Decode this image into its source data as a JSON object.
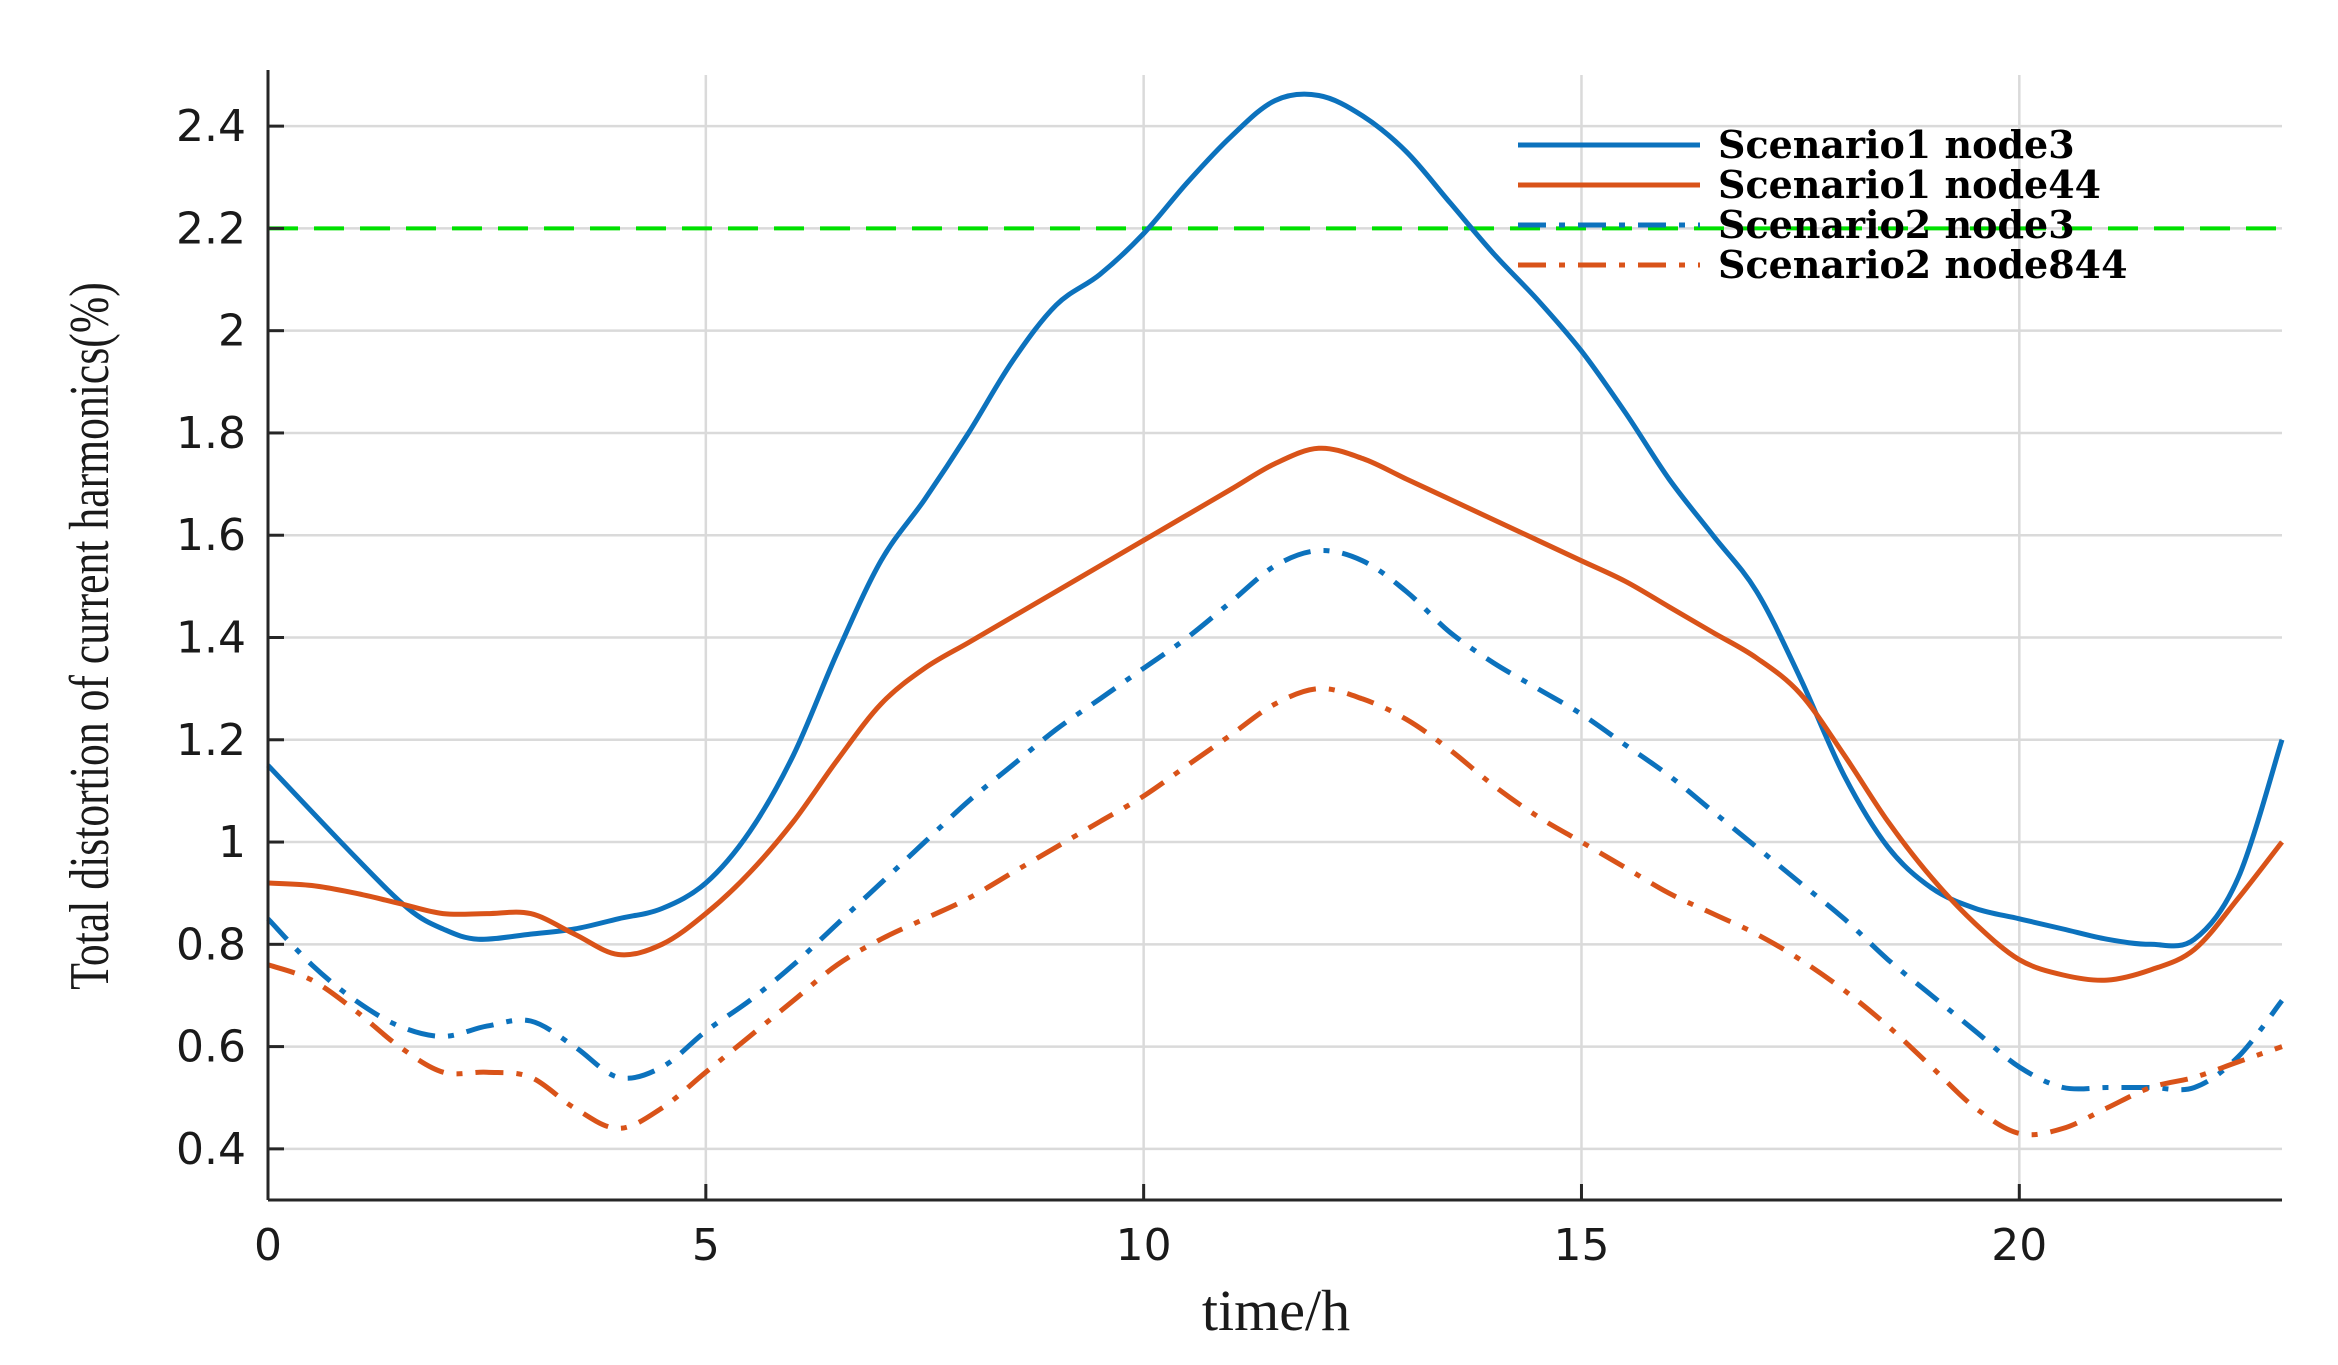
{
  "chart_data": {
    "type": "line",
    "title": "",
    "xlabel": "time/h",
    "ylabel": "Total distortion of current harmonics(%)",
    "xlim": [
      0,
      23
    ],
    "ylim": [
      0.3,
      2.5
    ],
    "xticks": [
      0,
      5,
      10,
      15,
      20
    ],
    "yticks": [
      0.4,
      0.6,
      0.8,
      1,
      1.2,
      1.4,
      1.6,
      1.8,
      2,
      2.2,
      2.4
    ],
    "xtick_labels": [
      "0",
      "5",
      "10",
      "15",
      "20"
    ],
    "ytick_labels": [
      "0.4",
      "0.6",
      "0.8",
      "1",
      "1.2",
      "1.4",
      "1.6",
      "1.8",
      "2",
      "2.2",
      "2.4"
    ],
    "grid": true,
    "legend_position": "top-right",
    "reference_line": {
      "y": 2.2,
      "color": "#00e000",
      "style": "dashed"
    },
    "series": [
      {
        "name": "Scenario1 node3",
        "color": "#0c72bd",
        "style": "solid",
        "x": [
          0,
          1,
          1.6,
          2,
          2.4,
          3,
          3.5,
          4,
          4.5,
          5,
          5.5,
          6,
          6.5,
          7,
          7.5,
          8,
          8.5,
          9,
          9.5,
          10,
          10.5,
          11,
          11.5,
          12,
          12.5,
          13,
          13.5,
          14,
          14.5,
          15,
          15.5,
          16,
          16.5,
          17,
          17.5,
          18,
          18.5,
          19,
          19.5,
          20,
          20.5,
          21,
          21.5,
          22,
          22.5,
          23
        ],
        "values": [
          1.15,
          0.97,
          0.87,
          0.83,
          0.81,
          0.82,
          0.83,
          0.85,
          0.87,
          0.92,
          1.02,
          1.17,
          1.37,
          1.55,
          1.67,
          1.8,
          1.94,
          2.05,
          2.11,
          2.19,
          2.29,
          2.38,
          2.45,
          2.46,
          2.42,
          2.35,
          2.25,
          2.15,
          2.06,
          1.96,
          1.84,
          1.71,
          1.6,
          1.49,
          1.32,
          1.13,
          0.99,
          0.91,
          0.87,
          0.85,
          0.83,
          0.81,
          0.8,
          0.81,
          0.93,
          1.2
        ]
      },
      {
        "name": "Scenario1 node44",
        "color": "#d95319",
        "style": "solid",
        "x": [
          0,
          0.5,
          1,
          1.5,
          2,
          2.5,
          3,
          3.5,
          4,
          4.5,
          5,
          5.5,
          6,
          6.5,
          7,
          7.5,
          8,
          8.5,
          9,
          9.5,
          10,
          10.5,
          11,
          11.5,
          12,
          12.5,
          13,
          13.5,
          14,
          14.5,
          15,
          15.5,
          16,
          16.5,
          17,
          17.5,
          18,
          18.5,
          19,
          19.5,
          20,
          20.5,
          21,
          21.5,
          22,
          22.5,
          23
        ],
        "values": [
          0.92,
          0.915,
          0.9,
          0.88,
          0.86,
          0.86,
          0.86,
          0.82,
          0.78,
          0.8,
          0.86,
          0.94,
          1.04,
          1.16,
          1.27,
          1.34,
          1.39,
          1.44,
          1.49,
          1.54,
          1.59,
          1.64,
          1.69,
          1.74,
          1.77,
          1.75,
          1.71,
          1.67,
          1.63,
          1.59,
          1.55,
          1.51,
          1.46,
          1.41,
          1.36,
          1.29,
          1.17,
          1.04,
          0.93,
          0.84,
          0.77,
          0.74,
          0.73,
          0.75,
          0.79,
          0.89,
          1.0
        ]
      },
      {
        "name": "Scenario2 node3",
        "color": "#0c72bd",
        "style": "dashdot",
        "x": [
          0,
          0.5,
          1,
          1.5,
          2,
          2.5,
          3,
          3.5,
          4,
          4.5,
          5,
          5.5,
          6,
          6.5,
          7,
          7.5,
          8,
          8.5,
          9,
          9.5,
          10,
          10.5,
          11,
          11.5,
          12,
          12.5,
          13,
          13.5,
          14,
          14.5,
          15,
          15.5,
          16,
          16.5,
          17,
          17.5,
          18,
          18.5,
          19,
          19.5,
          20,
          20.5,
          21,
          21.5,
          22,
          22.5,
          23
        ],
        "values": [
          0.85,
          0.76,
          0.69,
          0.64,
          0.62,
          0.64,
          0.65,
          0.6,
          0.54,
          0.56,
          0.63,
          0.69,
          0.76,
          0.84,
          0.92,
          1.0,
          1.08,
          1.15,
          1.22,
          1.28,
          1.34,
          1.4,
          1.47,
          1.54,
          1.57,
          1.55,
          1.49,
          1.41,
          1.35,
          1.3,
          1.25,
          1.19,
          1.13,
          1.06,
          0.99,
          0.92,
          0.85,
          0.77,
          0.7,
          0.63,
          0.56,
          0.52,
          0.52,
          0.52,
          0.52,
          0.58,
          0.69
        ]
      },
      {
        "name": "Scenario2 node844",
        "color": "#d95319",
        "style": "dashdot",
        "x": [
          0,
          0.5,
          1,
          1.5,
          2,
          2.5,
          3,
          3.5,
          4,
          4.5,
          5,
          5.5,
          6,
          6.5,
          7,
          7.5,
          8,
          8.5,
          9,
          9.5,
          10,
          10.5,
          11,
          11.5,
          12,
          12.5,
          13,
          13.5,
          14,
          14.5,
          15,
          15.5,
          16,
          16.5,
          17,
          17.5,
          18,
          18.5,
          19,
          19.5,
          20,
          20.5,
          21,
          21.5,
          22,
          22.5,
          23
        ],
        "values": [
          0.76,
          0.73,
          0.67,
          0.6,
          0.55,
          0.55,
          0.54,
          0.48,
          0.44,
          0.48,
          0.55,
          0.62,
          0.69,
          0.76,
          0.81,
          0.85,
          0.89,
          0.94,
          0.99,
          1.04,
          1.09,
          1.15,
          1.21,
          1.27,
          1.3,
          1.28,
          1.24,
          1.18,
          1.11,
          1.05,
          1.0,
          0.95,
          0.9,
          0.86,
          0.82,
          0.77,
          0.71,
          0.64,
          0.56,
          0.48,
          0.43,
          0.44,
          0.48,
          0.52,
          0.54,
          0.57,
          0.6
        ]
      }
    ]
  }
}
